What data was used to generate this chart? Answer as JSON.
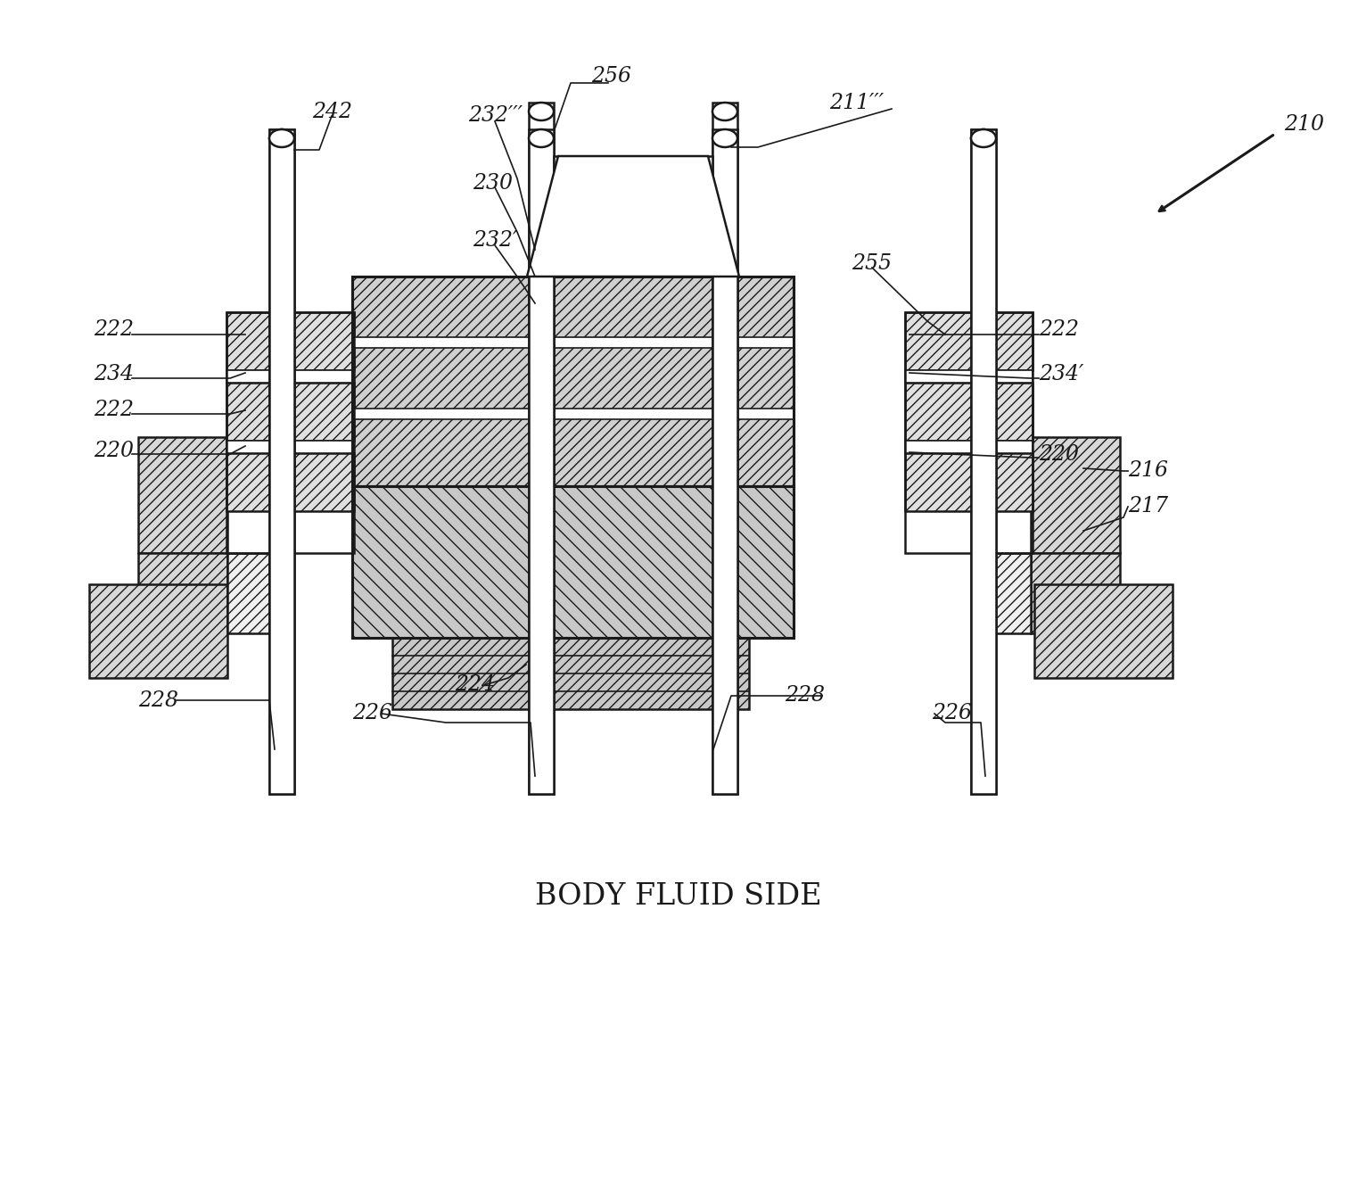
{
  "bg_color": "#ffffff",
  "lc": "#1a1a1a",
  "title": "BODY FLUID SIDE",
  "fig_w": 15.23,
  "fig_h": 13.43,
  "dpi": 100
}
